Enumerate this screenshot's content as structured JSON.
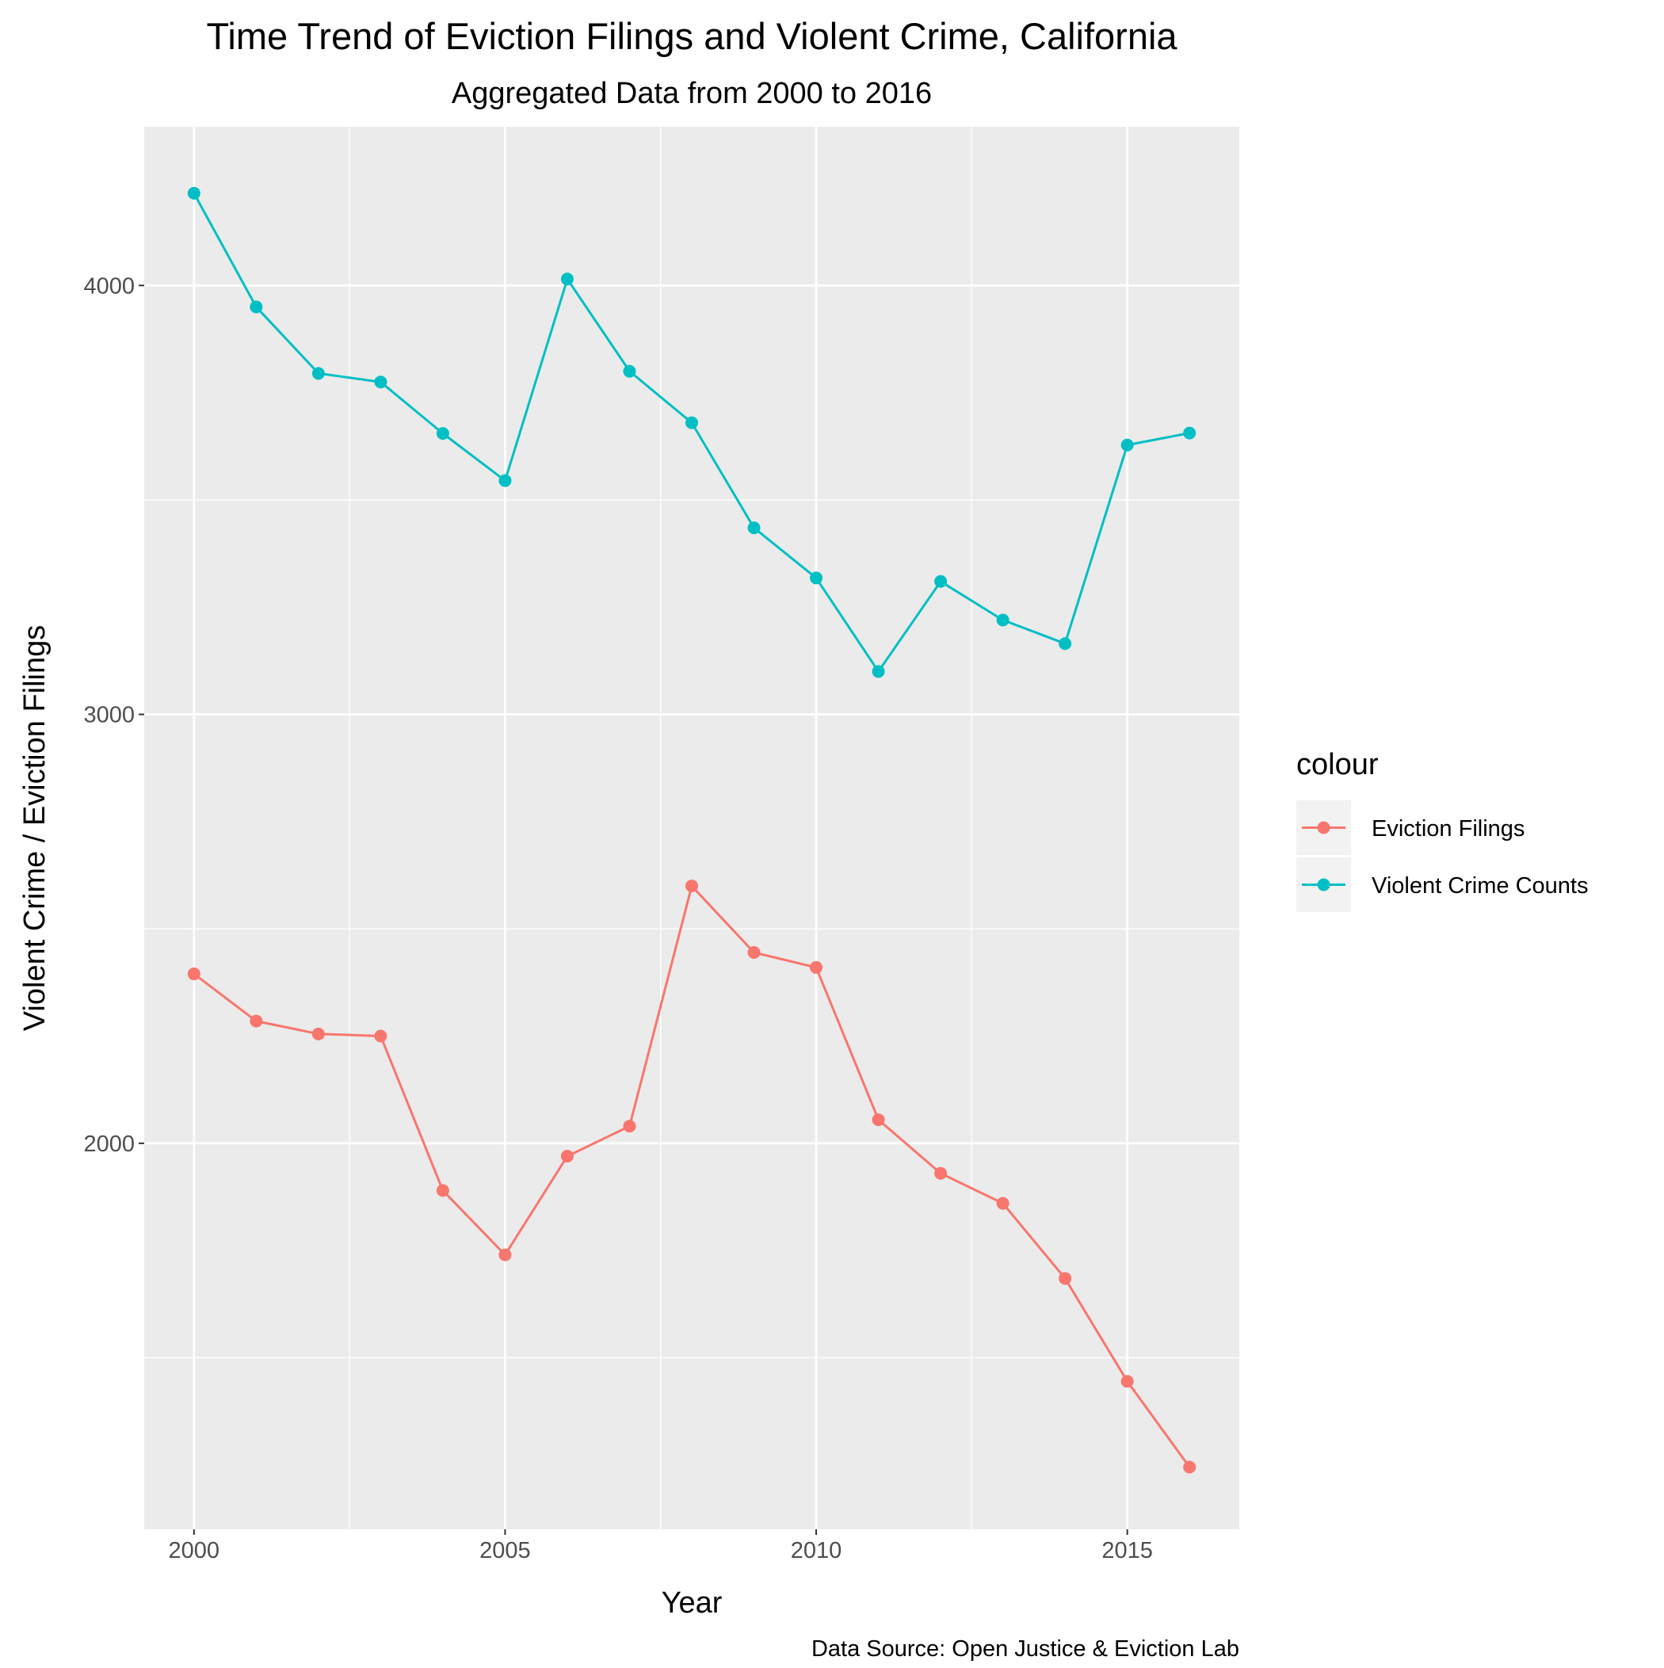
{
  "chart_data": {
    "type": "line",
    "title": "Time Trend of Eviction Filings and Violent Crime, California",
    "subtitle": "Aggregated Data from 2000 to 2016",
    "xlabel": "Year",
    "ylabel": "Violent Crime / Eviction Filings",
    "caption": "Data Source: Open Justice & Eviction Lab",
    "x": [
      2000,
      2001,
      2002,
      2003,
      2004,
      2005,
      2006,
      2007,
      2008,
      2009,
      2010,
      2011,
      2012,
      2013,
      2014,
      2015,
      2016
    ],
    "xlim": [
      1999.2,
      2016.8
    ],
    "ylim": [
      1100,
      4370
    ],
    "x_ticks": [
      2000,
      2005,
      2010,
      2015
    ],
    "x_tick_labels": [
      "2000",
      "2005",
      "2010",
      "2015"
    ],
    "x_minor_ticks": [
      2002.5,
      2007.5,
      2012.5
    ],
    "y_ticks": [
      2000,
      3000,
      4000
    ],
    "y_tick_labels": [
      "2000",
      "3000",
      "4000"
    ],
    "y_minor_ticks": [
      1500,
      2500,
      3500
    ],
    "grid": true,
    "legend": {
      "title": "colour",
      "placement": "right"
    },
    "series": [
      {
        "name": "Eviction Filings",
        "color": "#F8766D",
        "values": [
          2395,
          2285,
          2255,
          2250,
          1890,
          1740,
          1970,
          2040,
          2600,
          2445,
          2410,
          2055,
          1930,
          1860,
          1685,
          1445,
          1245
        ]
      },
      {
        "name": "Violent Crime Counts",
        "color": "#00BFC4",
        "values": [
          4215,
          3950,
          3795,
          3775,
          3655,
          3545,
          4015,
          3800,
          3680,
          3435,
          3318,
          3100,
          3310,
          3220,
          3165,
          3628,
          3656
        ]
      }
    ],
    "panel_background": "#EBEBEB",
    "grid_color": "#FFFFFF"
  }
}
